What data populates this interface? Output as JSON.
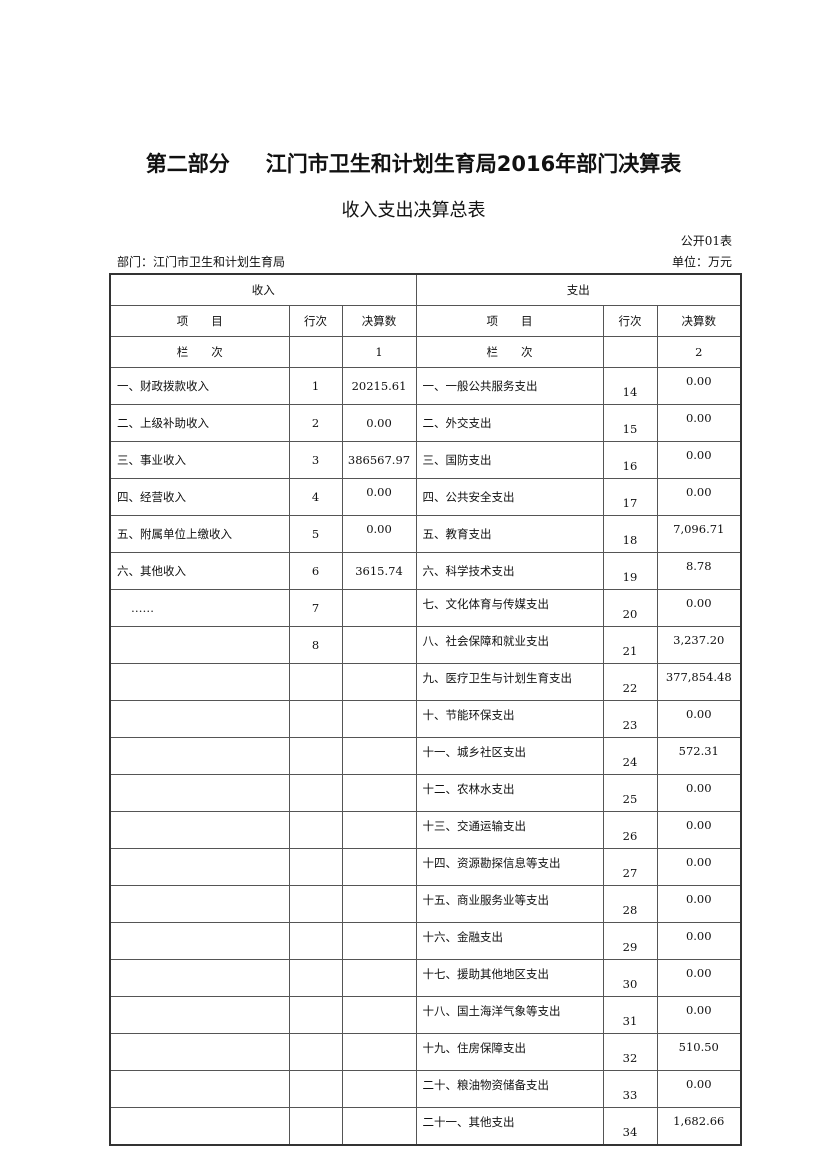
{
  "title_part": "第二部分",
  "title_main": "江门市卫生和计划生育局2016年部门决算表",
  "subtitle": "收入支出决算总表",
  "table_code": "公开01表",
  "department": "部门：江门市卫生和计划生育局",
  "unit": "单位：万元",
  "headers": {
    "income": "收入",
    "expense": "支出",
    "item": "项　　目",
    "line": "行次",
    "amount": "决算数",
    "column": "栏　　次",
    "income_col_no": "1",
    "expense_col_no": "2"
  },
  "rows": [
    {
      "in_item": "一、财政拨款收入",
      "in_line": "1",
      "in_amt": "20215.61",
      "ex_item": "一、一般公共服务支出",
      "ex_line": "14",
      "ex_amt": "0.00"
    },
    {
      "in_item": "二、上级补助收入",
      "in_line": "2",
      "in_amt": "0.00",
      "ex_item": "二、外交支出",
      "ex_line": "15",
      "ex_amt": "0.00"
    },
    {
      "in_item": "三、事业收入",
      "in_line": "3",
      "in_amt": "386567.97",
      "ex_item": "三、国防支出",
      "ex_line": "16",
      "ex_amt": "0.00"
    },
    {
      "in_item": "四、经营收入",
      "in_line": "4",
      "in_amt": "0.00",
      "ex_item": "四、公共安全支出",
      "ex_line": "17",
      "ex_amt": "0.00"
    },
    {
      "in_item": "五、附属单位上缴收入",
      "in_line": "5",
      "in_amt": "0.00",
      "ex_item": "五、教育支出",
      "ex_line": "18",
      "ex_amt": "7,096.71"
    },
    {
      "in_item": "六、其他收入",
      "in_line": "6",
      "in_amt": "3615.74",
      "ex_item": "六、科学技术支出",
      "ex_line": "19",
      "ex_amt": "8.78"
    },
    {
      "in_item": "……",
      "in_line": "7",
      "in_amt": "",
      "ex_item": "七、文化体育与传媒支出",
      "ex_line": "20",
      "ex_amt": "0.00"
    },
    {
      "in_item": "",
      "in_line": "8",
      "in_amt": "",
      "ex_item": "八、社会保障和就业支出",
      "ex_line": "21",
      "ex_amt": "3,237.20"
    },
    {
      "in_item": "",
      "in_line": "",
      "in_amt": "",
      "ex_item": "九、医疗卫生与计划生育支出",
      "ex_line": "22",
      "ex_amt": "377,854.48"
    },
    {
      "in_item": "",
      "in_line": "",
      "in_amt": "",
      "ex_item": "十、节能环保支出",
      "ex_line": "23",
      "ex_amt": "0.00"
    },
    {
      "in_item": "",
      "in_line": "",
      "in_amt": "",
      "ex_item": "十一、城乡社区支出",
      "ex_line": "24",
      "ex_amt": "572.31"
    },
    {
      "in_item": "",
      "in_line": "",
      "in_amt": "",
      "ex_item": "十二、农林水支出",
      "ex_line": "25",
      "ex_amt": "0.00"
    },
    {
      "in_item": "",
      "in_line": "",
      "in_amt": "",
      "ex_item": "十三、交通运输支出",
      "ex_line": "26",
      "ex_amt": "0.00"
    },
    {
      "in_item": "",
      "in_line": "",
      "in_amt": "",
      "ex_item": "十四、资源勘探信息等支出",
      "ex_line": "27",
      "ex_amt": "0.00"
    },
    {
      "in_item": "",
      "in_line": "",
      "in_amt": "",
      "ex_item": "十五、商业服务业等支出",
      "ex_line": "28",
      "ex_amt": "0.00"
    },
    {
      "in_item": "",
      "in_line": "",
      "in_amt": "",
      "ex_item": "十六、金融支出",
      "ex_line": "29",
      "ex_amt": "0.00"
    },
    {
      "in_item": "",
      "in_line": "",
      "in_amt": "",
      "ex_item": "十七、援助其他地区支出",
      "ex_line": "30",
      "ex_amt": "0.00"
    },
    {
      "in_item": "",
      "in_line": "",
      "in_amt": "",
      "ex_item": "十八、国土海洋气象等支出",
      "ex_line": "31",
      "ex_amt": "0.00"
    },
    {
      "in_item": "",
      "in_line": "",
      "in_amt": "",
      "ex_item": "十九、住房保障支出",
      "ex_line": "32",
      "ex_amt": "510.50"
    },
    {
      "in_item": "",
      "in_line": "",
      "in_amt": "",
      "ex_item": "二十、粮油物资储备支出",
      "ex_line": "33",
      "ex_amt": "0.00"
    },
    {
      "in_item": "",
      "in_line": "",
      "in_amt": "",
      "ex_item": "二十一、其他支出",
      "ex_line": "34",
      "ex_amt": "1,682.66"
    }
  ]
}
